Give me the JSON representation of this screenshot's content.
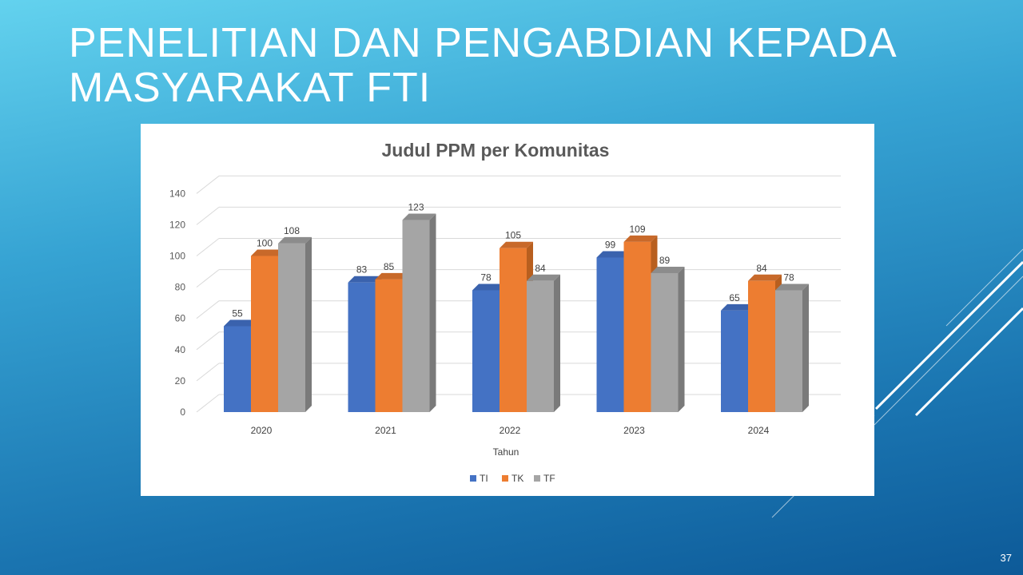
{
  "slide": {
    "title_line1": "PENELITIAN DAN PENGABDIAN KEPADA",
    "title_line2": "MASYARAKAT FTI",
    "page_number": "37"
  },
  "chart_data": {
    "type": "bar",
    "title": "Judul PPM per Komunitas",
    "xlabel": "Tahun",
    "ylabel": "",
    "categories": [
      "2020",
      "2021",
      "2022",
      "2023",
      "2024"
    ],
    "series": [
      {
        "name": "TI",
        "values": [
          55,
          83,
          78,
          99,
          65
        ],
        "color": "#4472c4",
        "side": "#2f5597",
        "top": "#3a62ad"
      },
      {
        "name": "TK",
        "values": [
          100,
          85,
          105,
          109,
          84
        ],
        "color": "#ed7d31",
        "side": "#b85f1f",
        "top": "#c8692a"
      },
      {
        "name": "TF",
        "values": [
          108,
          123,
          84,
          89,
          78
        ],
        "color": "#a5a5a5",
        "side": "#7a7a7a",
        "top": "#8c8c8c"
      }
    ],
    "ylim": [
      0,
      140
    ],
    "yticks": [
      0,
      20,
      40,
      60,
      80,
      100,
      120,
      140
    ],
    "grid": true,
    "legend": "bottom",
    "style": "3d-clustered-column"
  }
}
